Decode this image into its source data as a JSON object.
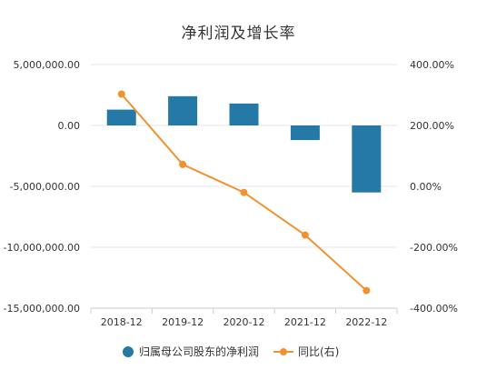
{
  "chart_data": {
    "type": "bar+line",
    "title": "净利润及增长率",
    "categories": [
      "2018-12",
      "2019-12",
      "2020-12",
      "2021-12",
      "2022-12"
    ],
    "left_axis": {
      "ticks": [
        "5,000,000.00",
        "0.00",
        "-5,000,000.00",
        "-10,000,000.00",
        "-15,000,000.00"
      ],
      "tick_values": [
        5000000,
        0,
        -5000000,
        -10000000,
        -15000000
      ],
      "ylim": [
        -15000000,
        5000000
      ]
    },
    "right_axis": {
      "ticks": [
        "400.00%",
        "200.00%",
        "0.00%",
        "-200.00%",
        "-400.00%"
      ],
      "tick_values": [
        400,
        200,
        0,
        -200,
        -400
      ],
      "ylim": [
        -400,
        400
      ]
    },
    "series": [
      {
        "name": "归属母公司股东的净利润",
        "type": "bar",
        "axis": "left",
        "color": "#2479a6",
        "values": [
          1300000,
          2400000,
          1800000,
          -1200000,
          -5500000
        ]
      },
      {
        "name": "同比(右)",
        "type": "line",
        "axis": "right",
        "color": "#f0922e",
        "values": [
          303,
          72,
          -20,
          -160,
          -342
        ]
      }
    ],
    "grid": true,
    "legend_position": "bottom-center"
  }
}
